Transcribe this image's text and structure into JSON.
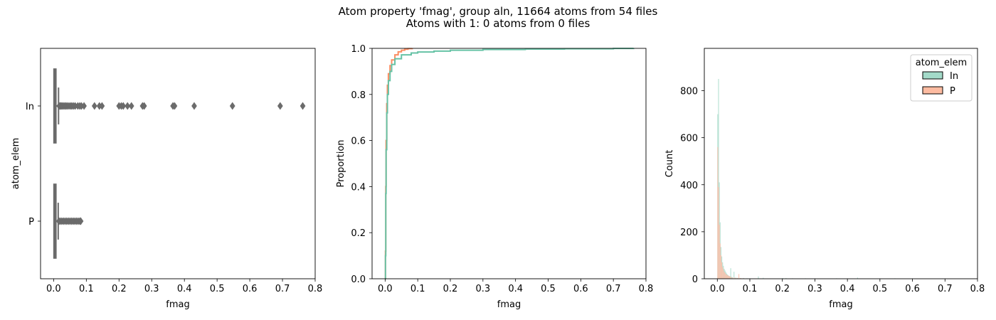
{
  "figure": {
    "title_line1": "Atom property 'fmag', group aln, 11664 atoms from 54 files",
    "title_line2": "Atoms with 1: 0 atoms from 0 files"
  },
  "colors": {
    "In": "#66c2a5",
    "P": "#fc8d62",
    "box": "#6b6b6b"
  },
  "chart_data": [
    {
      "type": "box",
      "xlabel": "fmag",
      "ylabel": "atom_elem",
      "xlim": [
        -0.04,
        0.8
      ],
      "xticks": [
        0.0,
        0.1,
        0.2,
        0.3,
        0.4,
        0.5,
        0.6,
        0.7,
        0.8
      ],
      "xtick_labels": [
        "0.0",
        "0.1",
        "0.2",
        "0.3",
        "0.4",
        "0.5",
        "0.6",
        "0.7",
        "0.8"
      ],
      "categories": [
        "In",
        "P"
      ],
      "boxes": [
        {
          "name": "In",
          "q1": 0.001,
          "median": 0.003,
          "q3": 0.007,
          "whisker_low": 0.0,
          "whisker_high": 0.015,
          "outliers": [
            0.017,
            0.02,
            0.023,
            0.026,
            0.03,
            0.034,
            0.038,
            0.042,
            0.047,
            0.052,
            0.056,
            0.061,
            0.066,
            0.074,
            0.08,
            0.085,
            0.093,
            0.125,
            0.14,
            0.148,
            0.2,
            0.207,
            0.213,
            0.226,
            0.238,
            0.272,
            0.277,
            0.365,
            0.37,
            0.43,
            0.547,
            0.693,
            0.762
          ]
        },
        {
          "name": "P",
          "q1": 0.001,
          "median": 0.003,
          "q3": 0.007,
          "whisker_low": 0.0,
          "whisker_high": 0.014,
          "outliers": [
            0.016,
            0.02,
            0.025,
            0.03,
            0.035,
            0.04,
            0.045,
            0.05,
            0.055,
            0.06,
            0.065,
            0.07,
            0.075,
            0.08,
            0.083
          ]
        }
      ]
    },
    {
      "type": "line",
      "subtype": "ecdf",
      "xlabel": "fmag",
      "ylabel": "Proportion",
      "xlim": [
        -0.04,
        0.8
      ],
      "ylim": [
        0.0,
        1.0
      ],
      "xticks": [
        0.0,
        0.1,
        0.2,
        0.3,
        0.4,
        0.5,
        0.6,
        0.7,
        0.8
      ],
      "xtick_labels": [
        "0.0",
        "0.1",
        "0.2",
        "0.3",
        "0.4",
        "0.5",
        "0.6",
        "0.7",
        "0.8"
      ],
      "yticks": [
        0.0,
        0.2,
        0.4,
        0.6,
        0.8,
        1.0
      ],
      "ytick_labels": [
        "0.0",
        "0.2",
        "0.4",
        "0.6",
        "0.8",
        "1.0"
      ],
      "series": [
        {
          "name": "P",
          "x": [
            0.0,
            0.001,
            0.002,
            0.003,
            0.005,
            0.007,
            0.01,
            0.015,
            0.02,
            0.03,
            0.04,
            0.05,
            0.06,
            0.07,
            0.083
          ],
          "y": [
            0.0,
            0.12,
            0.4,
            0.6,
            0.76,
            0.84,
            0.89,
            0.925,
            0.95,
            0.972,
            0.985,
            0.992,
            0.996,
            0.999,
            1.0
          ]
        },
        {
          "name": "In",
          "x": [
            0.0,
            0.001,
            0.002,
            0.003,
            0.005,
            0.007,
            0.01,
            0.015,
            0.02,
            0.03,
            0.05,
            0.08,
            0.1,
            0.15,
            0.2,
            0.3,
            0.43,
            0.55,
            0.7,
            0.762
          ],
          "y": [
            0.0,
            0.1,
            0.37,
            0.56,
            0.72,
            0.8,
            0.86,
            0.9,
            0.93,
            0.955,
            0.972,
            0.98,
            0.984,
            0.988,
            0.992,
            0.995,
            0.997,
            0.998,
            0.9995,
            1.0
          ]
        }
      ]
    },
    {
      "type": "histogram",
      "xlabel": "fmag",
      "ylabel": "Count",
      "xlim": [
        -0.04,
        0.8
      ],
      "ylim": [
        0,
        980
      ],
      "xticks": [
        0.0,
        0.1,
        0.2,
        0.3,
        0.4,
        0.5,
        0.6,
        0.7,
        0.8
      ],
      "xtick_labels": [
        "0.0",
        "0.1",
        "0.2",
        "0.3",
        "0.4",
        "0.5",
        "0.6",
        "0.7",
        "0.8"
      ],
      "yticks": [
        0,
        200,
        400,
        600,
        800
      ],
      "ytick_labels": [
        "0",
        "200",
        "400",
        "600",
        "800"
      ],
      "bin_width": 0.0025,
      "legend": {
        "title": "atom_elem",
        "entries": [
          "In",
          "P"
        ],
        "placement": "upper-right"
      },
      "series": [
        {
          "name": "In",
          "bins": [
            [
              0.0,
              700
            ],
            [
              0.0025,
              850
            ],
            [
              0.005,
              410
            ],
            [
              0.0075,
              240
            ],
            [
              0.01,
              135
            ],
            [
              0.0125,
              95
            ],
            [
              0.015,
              70
            ],
            [
              0.0175,
              55
            ],
            [
              0.02,
              42
            ],
            [
              0.0225,
              35
            ],
            [
              0.025,
              28
            ],
            [
              0.0275,
              22
            ],
            [
              0.03,
              18
            ],
            [
              0.0325,
              15
            ],
            [
              0.035,
              12
            ],
            [
              0.0375,
              10
            ],
            [
              0.04,
              45
            ],
            [
              0.0425,
              8
            ],
            [
              0.045,
              7
            ],
            [
              0.05,
              30
            ],
            [
              0.055,
              5
            ],
            [
              0.06,
              4
            ],
            [
              0.07,
              3
            ],
            [
              0.08,
              3
            ],
            [
              0.09,
              2
            ],
            [
              0.125,
              10
            ],
            [
              0.14,
              4
            ],
            [
              0.2,
              3
            ],
            [
              0.21,
              3
            ],
            [
              0.23,
              2
            ],
            [
              0.27,
              2
            ],
            [
              0.365,
              2
            ],
            [
              0.43,
              5
            ],
            [
              0.545,
              2
            ],
            [
              0.69,
              1
            ],
            [
              0.76,
              1
            ]
          ]
        },
        {
          "name": "P",
          "bins": [
            [
              0.0,
              560
            ],
            [
              0.0025,
              390
            ],
            [
              0.005,
              230
            ],
            [
              0.0075,
              150
            ],
            [
              0.01,
              100
            ],
            [
              0.0125,
              70
            ],
            [
              0.015,
              50
            ],
            [
              0.0175,
              40
            ],
            [
              0.02,
              30
            ],
            [
              0.0225,
              25
            ],
            [
              0.025,
              20
            ],
            [
              0.0275,
              18
            ],
            [
              0.03,
              15
            ],
            [
              0.0325,
              13
            ],
            [
              0.035,
              12
            ],
            [
              0.0375,
              10
            ],
            [
              0.04,
              8
            ],
            [
              0.045,
              6
            ],
            [
              0.05,
              5
            ],
            [
              0.055,
              4
            ],
            [
              0.06,
              3
            ],
            [
              0.065,
              20
            ],
            [
              0.07,
              3
            ],
            [
              0.075,
              2
            ],
            [
              0.08,
              2
            ]
          ]
        }
      ]
    }
  ]
}
